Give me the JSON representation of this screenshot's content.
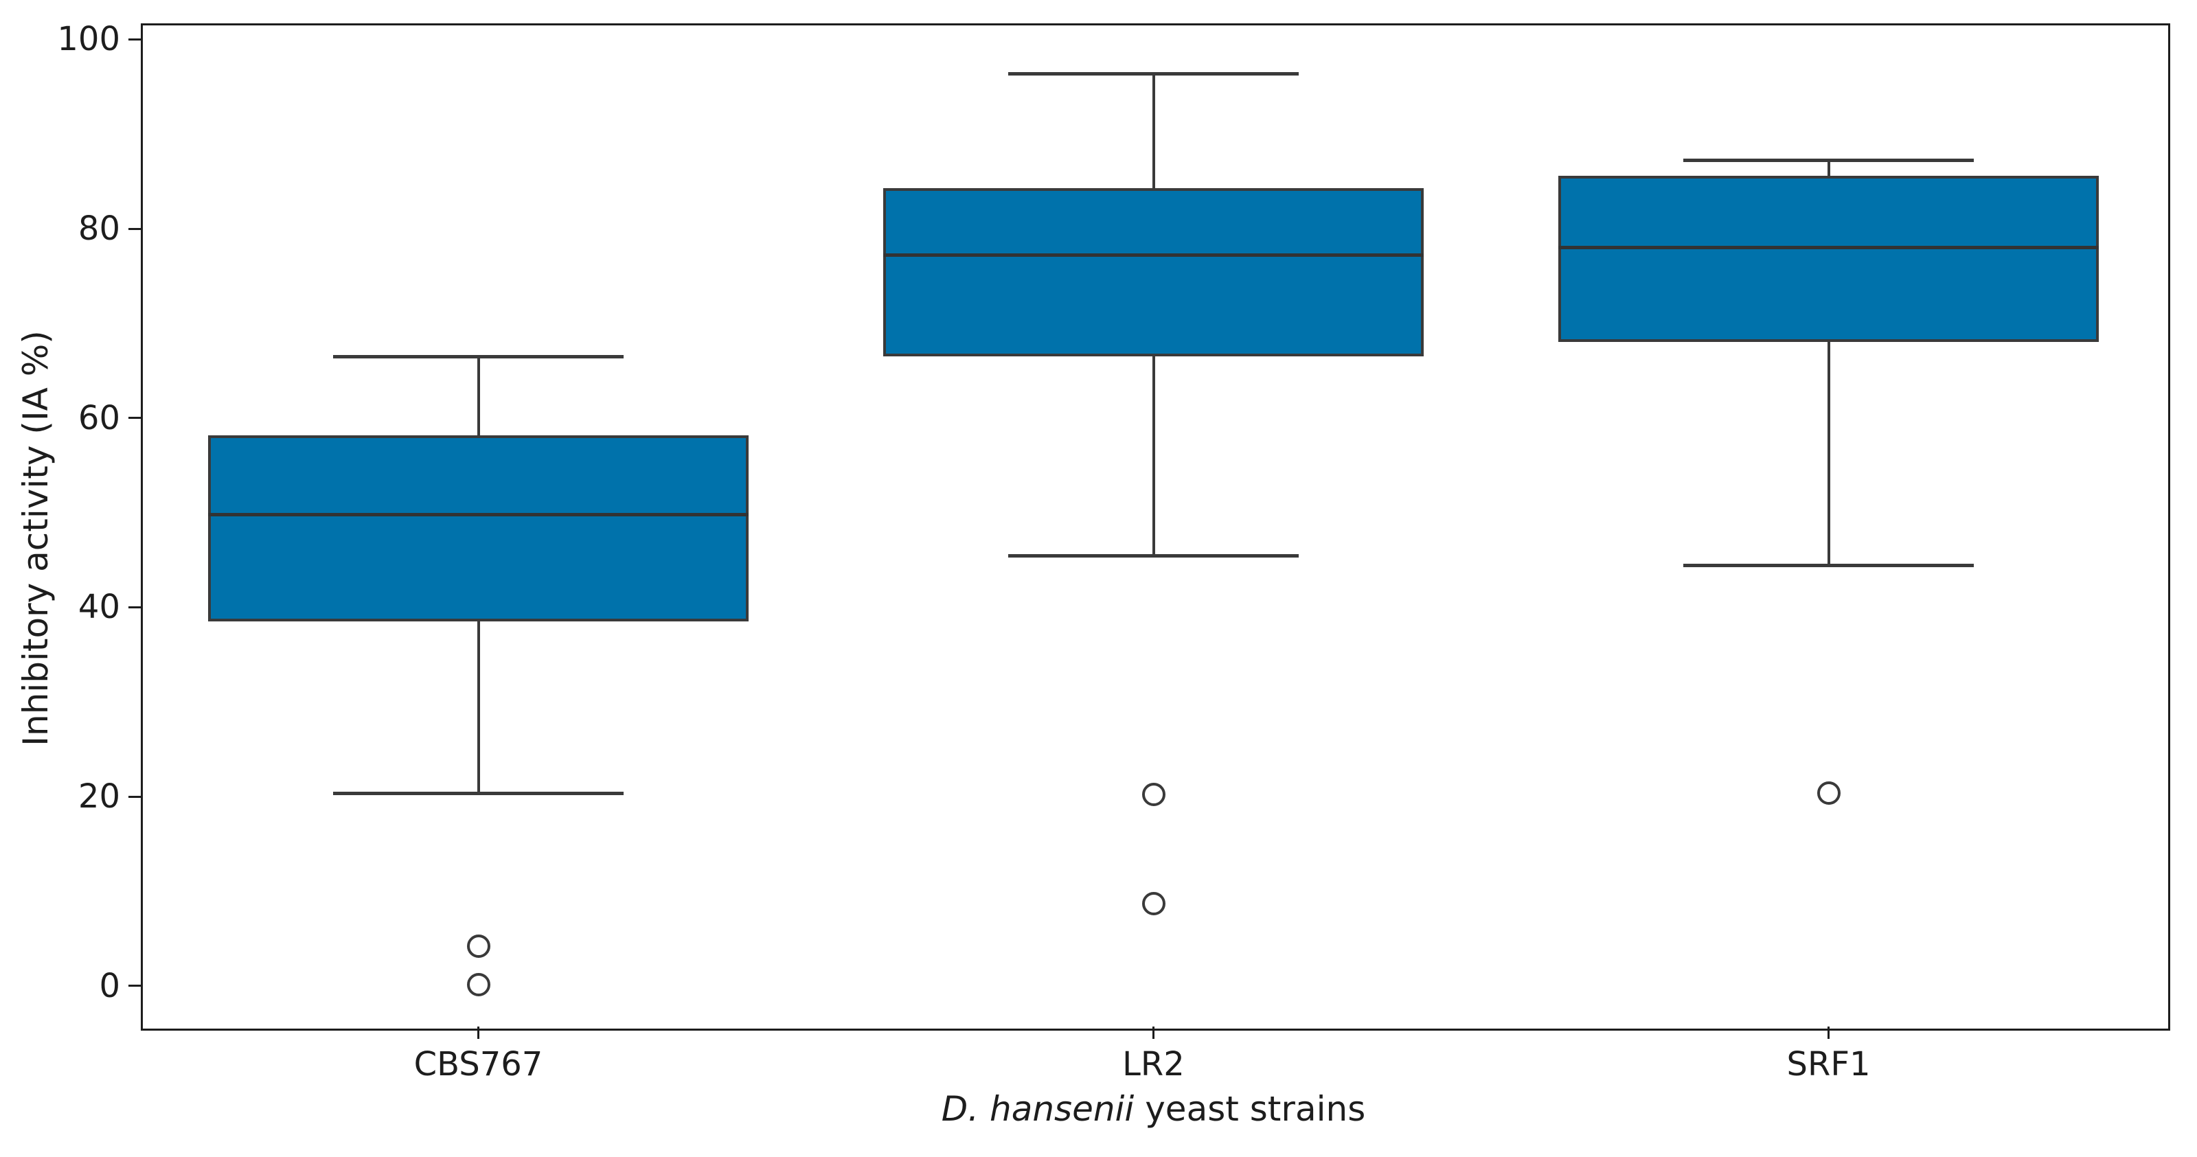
{
  "figure": {
    "y_axis_title": "Inhibitory activity (IA %)",
    "x_axis_title": "D. hansenii yeast strains",
    "x_axis_title_italic_segment": "D. hansenii",
    "x_axis_title_rest_segment": " yeast strains"
  },
  "chart_data": {
    "type": "boxplot",
    "title": "",
    "xlabel": "D. hansenii yeast strains",
    "xlabel_italic_segment": "D. hansenii",
    "xlabel_rest_segment": " yeast strains",
    "ylabel": "Inhibitory activity (IA %)",
    "categories": [
      "CBS767",
      "LR2",
      "SRF1"
    ],
    "yticks": [
      0,
      20,
      40,
      60,
      80,
      100
    ],
    "ylim": [
      -4.3,
      101.7
    ],
    "grid": false,
    "legend": null,
    "series": [
      {
        "name": "CBS767",
        "whislo": 20.3,
        "q1": 38.5,
        "med": 49.8,
        "q3": 58.2,
        "whishi": 66.5,
        "fliers": [
          4.2,
          0.1
        ]
      },
      {
        "name": "LR2",
        "whislo": 45.4,
        "q1": 66.5,
        "med": 77.2,
        "q3": 84.3,
        "whishi": 96.4,
        "fliers": [
          20.2,
          8.7
        ]
      },
      {
        "name": "SRF1",
        "whislo": 44.4,
        "q1": 68.0,
        "med": 78.0,
        "q3": 85.6,
        "whishi": 87.2,
        "fliers": [
          20.4
        ]
      }
    ],
    "style": {
      "box_fill": "#0072ab",
      "box_edge": "#3a3a3a",
      "whisker_color": "#3a3a3a",
      "cap_color": "#3a3a3a",
      "median_color": "#333333",
      "flier_edge": "#3a3a3a",
      "spine_color": "#1d1d1d",
      "text_color": "#1d1d1d",
      "box_width_frac": 0.8,
      "cap_width_frac": 0.43
    }
  }
}
